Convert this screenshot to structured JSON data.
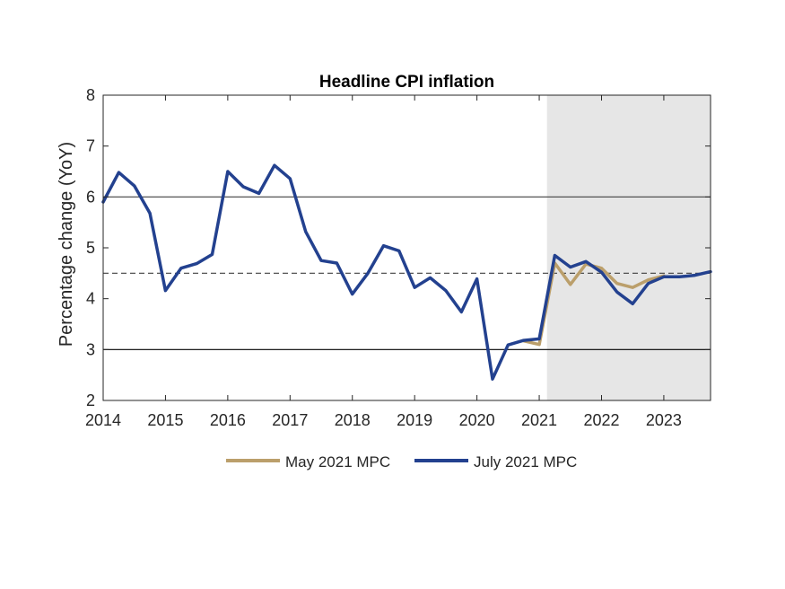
{
  "chart_data": {
    "type": "line",
    "title": "Headline CPI inflation",
    "xlabel": "",
    "ylabel": "Percentage change (YoY)",
    "xlim": [
      2014,
      2023.75
    ],
    "ylim": [
      2,
      8
    ],
    "x_ticks": [
      2014,
      2015,
      2016,
      2017,
      2018,
      2019,
      2020,
      2021,
      2022,
      2023
    ],
    "y_ticks": [
      2,
      3,
      4,
      5,
      6,
      7,
      8
    ],
    "forecast_shading": {
      "from": 2021.125,
      "to": 2023.75,
      "color": "#e6e6e6"
    },
    "reference_lines": [
      {
        "y": 6,
        "style": "solid",
        "color": "#404040"
      },
      {
        "y": 4.5,
        "style": "dashed",
        "color": "#404040"
      },
      {
        "y": 3,
        "style": "solid",
        "color": "#000000"
      }
    ],
    "legend_position": "bottom",
    "series": [
      {
        "name": "May 2021 MPC",
        "color": "#bb9f6b",
        "x": [
          2020.75,
          2021.0,
          2021.25,
          2021.5,
          2021.75,
          2022.0,
          2022.25,
          2022.5,
          2022.75,
          2023.0
        ],
        "values": [
          3.17,
          3.1,
          4.7,
          4.28,
          4.68,
          4.6,
          4.3,
          4.22,
          4.37,
          4.45
        ]
      },
      {
        "name": "July 2021 MPC",
        "color": "#23418f",
        "x": [
          2014.0,
          2014.25,
          2014.5,
          2014.75,
          2015.0,
          2015.25,
          2015.5,
          2015.75,
          2016.0,
          2016.25,
          2016.5,
          2016.75,
          2017.0,
          2017.25,
          2017.5,
          2017.75,
          2018.0,
          2018.25,
          2018.5,
          2018.75,
          2019.0,
          2019.25,
          2019.5,
          2019.75,
          2020.0,
          2020.25,
          2020.5,
          2020.75,
          2021.0,
          2021.25,
          2021.5,
          2021.75,
          2022.0,
          2022.25,
          2022.5,
          2022.75,
          2023.0,
          2023.25,
          2023.5,
          2023.75
        ],
        "values": [
          5.9,
          6.48,
          6.22,
          5.68,
          4.16,
          4.6,
          4.69,
          4.87,
          6.5,
          6.2,
          6.07,
          6.62,
          6.36,
          5.32,
          4.75,
          4.7,
          4.09,
          4.5,
          5.04,
          4.94,
          4.22,
          4.41,
          4.16,
          3.74,
          4.39,
          2.42,
          3.09,
          3.18,
          3.21,
          4.85,
          4.62,
          4.73,
          4.52,
          4.13,
          3.9,
          4.3,
          4.43,
          4.43,
          4.46,
          4.53
        ]
      }
    ]
  }
}
